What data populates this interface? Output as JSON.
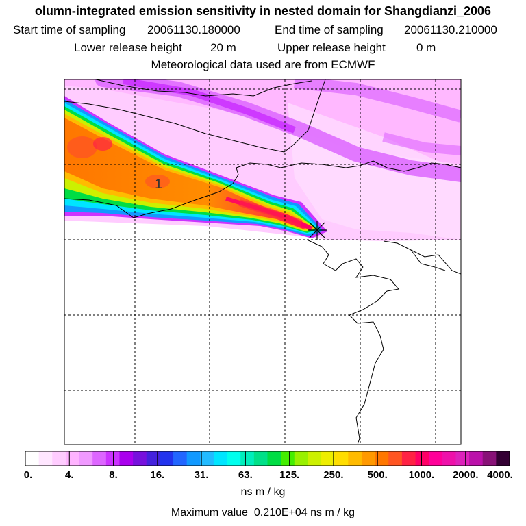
{
  "header": {
    "title": "olumn-integrated emission sensitivity in nested domain for Shangdianzi_2006",
    "start_label": "Start time of sampling",
    "start_value": "20061130.180000",
    "end_label": "End time of sampling",
    "end_value": "20061130.210000",
    "lower_label": "Lower release height",
    "lower_value": "20 m",
    "upper_label": "Upper release height",
    "upper_value": "0 m",
    "met_text": "Meteorological data used are from ECMWF"
  },
  "map": {
    "contour_label": "1",
    "release_marker": "star-cross"
  },
  "colorbar": {
    "tick_labels": [
      "0.",
      "4.",
      "8.",
      "16.",
      "31.",
      "63.",
      "125.",
      "250.",
      "500.",
      "1000.",
      "2000.",
      "4000."
    ],
    "colors": [
      "#ffffff",
      "#ffe6ff",
      "#ffccff",
      "#ffb3ff",
      "#f099ff",
      "#dd66ff",
      "#cc33ff",
      "#aa00ee",
      "#7711dd",
      "#4422dd",
      "#2233ee",
      "#2266ff",
      "#1199ff",
      "#22bbff",
      "#00e5ff",
      "#00ffee",
      "#00eebb",
      "#00e088",
      "#00dd44",
      "#44ee00",
      "#99f000",
      "#ccf000",
      "#eeee00",
      "#ffdd00",
      "#ffbb00",
      "#ff9900",
      "#ff7700",
      "#ff5522",
      "#ff2244",
      "#ff0066",
      "#ff0099",
      "#ee11aa",
      "#dd22bb",
      "#bb11aa",
      "#881177",
      "#330033"
    ],
    "units": "ns m / kg"
  },
  "footer": {
    "max_label": "Maximum value",
    "max_value": "0.210E+04",
    "max_units": "ns m / kg"
  }
}
